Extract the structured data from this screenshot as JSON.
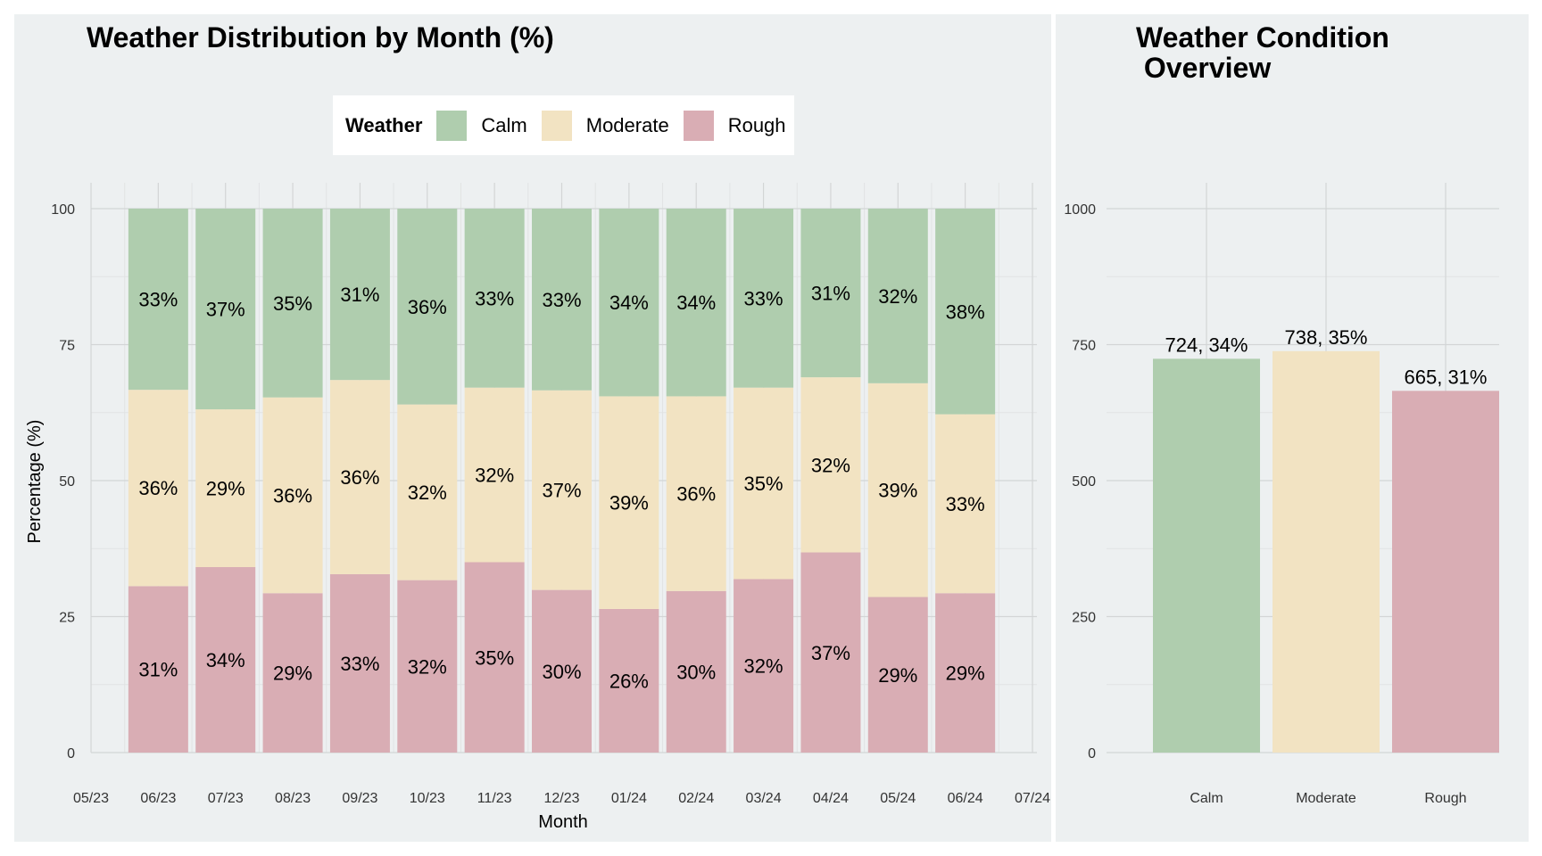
{
  "left_title": "Weather Distribution by Month (%)",
  "right_title": "Weather Condition\n Overview",
  "legend": {
    "title": "Weather",
    "items": [
      {
        "label": "Calm",
        "color": "#afcdae"
      },
      {
        "label": "Moderate",
        "color": "#f2e3c2"
      },
      {
        "label": "Rough",
        "color": "#d9adb4"
      }
    ]
  },
  "chart_data": [
    {
      "type": "bar",
      "stacked": true,
      "title": "Weather Distribution by Month (%)",
      "xlabel": "Month",
      "ylabel": "Percentage (%)",
      "ylim": [
        0,
        100
      ],
      "yticks": [
        0,
        25,
        50,
        75,
        100
      ],
      "xticks": [
        "05/23",
        "06/23",
        "07/23",
        "08/23",
        "09/23",
        "10/23",
        "11/23",
        "12/23",
        "01/24",
        "02/24",
        "03/24",
        "04/24",
        "05/24",
        "06/24",
        "07/24"
      ],
      "categories": [
        "06/23",
        "07/23",
        "08/23",
        "09/23",
        "10/23",
        "11/23",
        "12/23",
        "01/24",
        "02/24",
        "03/24",
        "04/24",
        "05/24",
        "06/24"
      ],
      "series": [
        {
          "name": "Rough",
          "color": "#d9adb4",
          "values": [
            30.6,
            34.1,
            29.3,
            32.8,
            31.7,
            35.0,
            29.9,
            26.4,
            29.7,
            31.9,
            36.8,
            28.6,
            29.3
          ],
          "labels": [
            "31%",
            "34%",
            "29%",
            "33%",
            "32%",
            "35%",
            "30%",
            "26%",
            "30%",
            "32%",
            "37%",
            "29%",
            "29%"
          ]
        },
        {
          "name": "Moderate",
          "color": "#f2e3c2",
          "values": [
            36.1,
            29.0,
            36.0,
            35.7,
            32.3,
            32.1,
            36.7,
            39.1,
            35.8,
            35.2,
            32.2,
            39.3,
            32.9
          ],
          "labels": [
            "36%",
            "29%",
            "36%",
            "36%",
            "32%",
            "32%",
            "37%",
            "39%",
            "36%",
            "35%",
            "32%",
            "39%",
            "33%"
          ]
        },
        {
          "name": "Calm",
          "color": "#afcdae",
          "values": [
            33.3,
            36.9,
            34.7,
            31.5,
            36.0,
            32.9,
            33.4,
            34.5,
            34.5,
            32.9,
            31.0,
            32.1,
            37.8
          ],
          "labels": [
            "33%",
            "37%",
            "35%",
            "31%",
            "36%",
            "33%",
            "33%",
            "34%",
            "34%",
            "33%",
            "31%",
            "32%",
            "38%"
          ]
        }
      ],
      "grid": true,
      "legend_position": "top"
    },
    {
      "type": "bar",
      "title": "Weather Condition\n Overview",
      "xlabel": "",
      "ylabel": "",
      "ylim": [
        0,
        1000
      ],
      "yticks": [
        0,
        250,
        500,
        750,
        1000
      ],
      "categories": [
        "Calm",
        "Moderate",
        "Rough"
      ],
      "values": [
        724,
        738,
        665
      ],
      "colors": [
        "#afcdae",
        "#f2e3c2",
        "#d9adb4"
      ],
      "labels": [
        "724, 34%",
        "738, 35%",
        "665, 31%"
      ],
      "grid": true
    }
  ]
}
